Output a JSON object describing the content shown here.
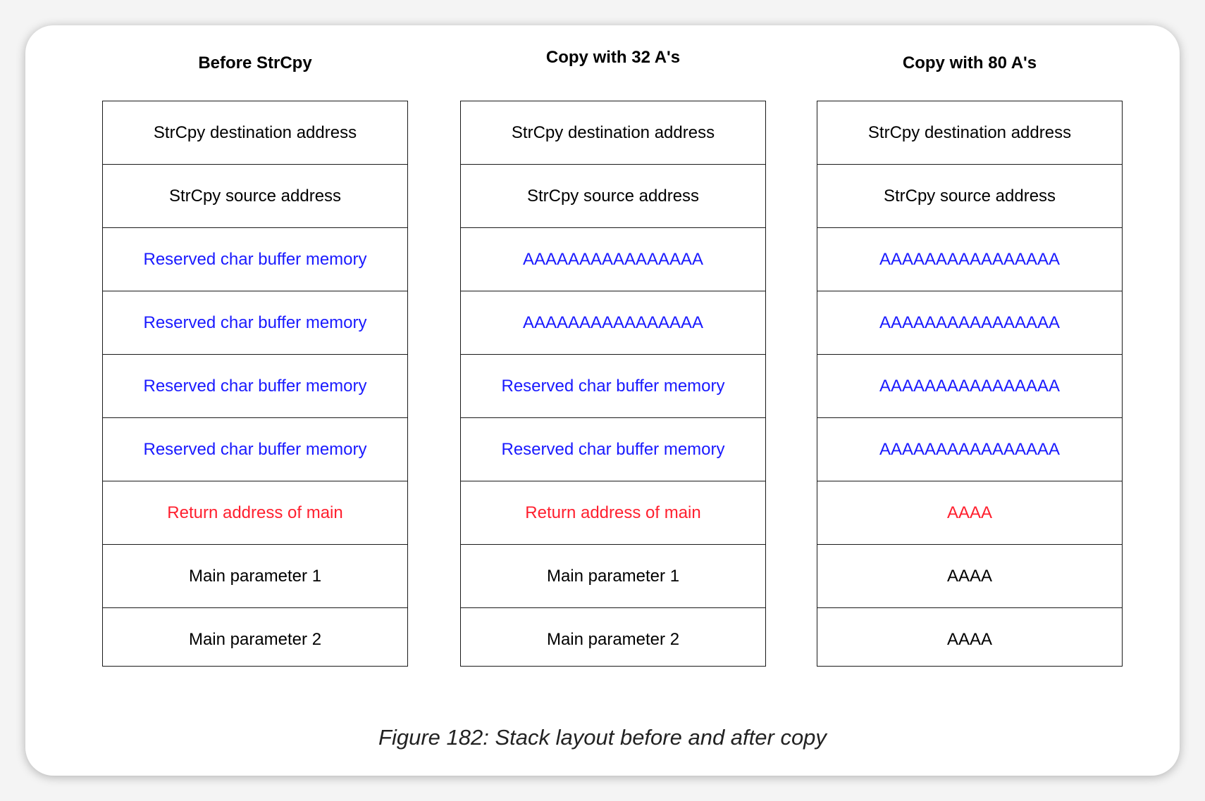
{
  "colors": {
    "normal": "#000000",
    "buffer": "#1a1aff",
    "return": "#ff1f2e"
  },
  "stacks": [
    {
      "title": "Before StrCpy",
      "cells": [
        {
          "text": "StrCpy destination address",
          "kind": "normal"
        },
        {
          "text": "StrCpy source address",
          "kind": "normal"
        },
        {
          "text": "Reserved char buffer memory",
          "kind": "buffer"
        },
        {
          "text": "Reserved char buffer memory",
          "kind": "buffer"
        },
        {
          "text": "Reserved char buffer memory",
          "kind": "buffer"
        },
        {
          "text": "Reserved char buffer memory",
          "kind": "buffer"
        },
        {
          "text": "Return address of main",
          "kind": "return"
        },
        {
          "text": "Main parameter 1",
          "kind": "normal"
        },
        {
          "text": "Main parameter 2",
          "kind": "normal"
        }
      ]
    },
    {
      "title": "Copy with 32 A's",
      "cells": [
        {
          "text": "StrCpy destination address",
          "kind": "normal"
        },
        {
          "text": "StrCpy source address",
          "kind": "normal"
        },
        {
          "text": "AAAAAAAAAAAAAAAA",
          "kind": "buffer"
        },
        {
          "text": "AAAAAAAAAAAAAAAA",
          "kind": "buffer"
        },
        {
          "text": "Reserved char buffer memory",
          "kind": "buffer"
        },
        {
          "text": "Reserved char buffer memory",
          "kind": "buffer"
        },
        {
          "text": "Return address of main",
          "kind": "return"
        },
        {
          "text": "Main parameter 1",
          "kind": "normal"
        },
        {
          "text": "Main parameter 2",
          "kind": "normal"
        }
      ]
    },
    {
      "title": "Copy with 80 A's",
      "cells": [
        {
          "text": "StrCpy destination address",
          "kind": "normal"
        },
        {
          "text": "StrCpy source address",
          "kind": "normal"
        },
        {
          "text": "AAAAAAAAAAAAAAAA",
          "kind": "buffer"
        },
        {
          "text": "AAAAAAAAAAAAAAAA",
          "kind": "buffer"
        },
        {
          "text": "AAAAAAAAAAAAAAAA",
          "kind": "buffer"
        },
        {
          "text": "AAAAAAAAAAAAAAAA",
          "kind": "buffer"
        },
        {
          "text": "AAAA",
          "kind": "return"
        },
        {
          "text": "AAAA",
          "kind": "normal"
        },
        {
          "text": "AAAA",
          "kind": "normal"
        }
      ]
    }
  ],
  "caption": "Figure 182: Stack layout before and after copy"
}
